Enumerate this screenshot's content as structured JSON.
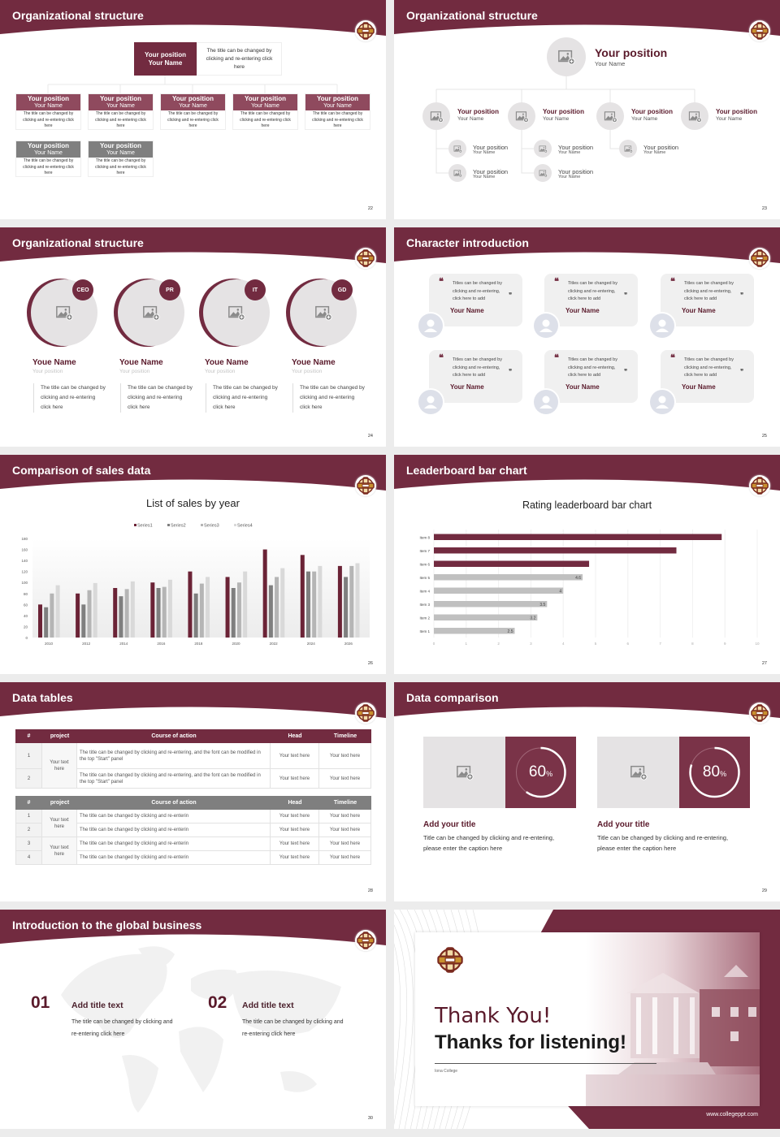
{
  "colors": {
    "brand": "#722b40",
    "brand_light": "#8f4a5e",
    "gray_header": "#7f7f7f",
    "placeholder": "#e5e3e4"
  },
  "slides": {
    "s22": {
      "title": "Organizational structure",
      "page": "22",
      "top": {
        "position": "Your position",
        "name": "Your Name",
        "desc": "The title can be changed by clicking and re-entering click here"
      },
      "cards": [
        {
          "position": "Your position",
          "name": "Your Name",
          "desc": "The title can be changed by clicking and re-entering click here",
          "style": "accent"
        },
        {
          "position": "Your position",
          "name": "Your Name",
          "desc": "The title can be changed by clicking and re-entering click here",
          "style": "accent"
        },
        {
          "position": "Your position",
          "name": "Your Name",
          "desc": "The title can be changed by clicking and re-entering click here",
          "style": "accent"
        },
        {
          "position": "Your position",
          "name": "Your Name",
          "desc": "The title can be changed by clicking and re-entering click here",
          "style": "accent"
        },
        {
          "position": "Your position",
          "name": "Your Name",
          "desc": "The title can be changed by clicking and re-entering click here",
          "style": "accent"
        },
        {
          "position": "Your position",
          "name": "Your Name",
          "desc": "The title can be changed by clicking and re-entering click here",
          "style": "gray"
        },
        {
          "position": "Your position",
          "name": "Your Name",
          "desc": "The title can be changed by clicking and re-entering click here",
          "style": "gray"
        }
      ]
    },
    "s23": {
      "title": "Organizational structure",
      "page": "23",
      "top": {
        "position": "Your position",
        "name": "Your Name"
      },
      "level2": [
        {
          "position": "Your position",
          "name": "Your Name"
        },
        {
          "position": "Your position",
          "name": "Your Name"
        },
        {
          "position": "Your position",
          "name": "Your Name"
        },
        {
          "position": "Your position",
          "name": "Your Name"
        }
      ],
      "level3": [
        {
          "position": "Your position",
          "name": "Your Name"
        },
        {
          "position": "Your position",
          "name": "Your Name"
        },
        {
          "position": "Your position",
          "name": "Your Name"
        },
        {
          "position": "Your position",
          "name": "Your Name"
        },
        {
          "position": "Your position",
          "name": "Your Name"
        }
      ]
    },
    "s24": {
      "title": "Organizational structure",
      "page": "24",
      "members": [
        {
          "badge": "CEO",
          "name": "Youe Name",
          "position": "Your position",
          "desc": "The title can be changed by clicking and re-entering click here"
        },
        {
          "badge": "PR",
          "name": "Youe Name",
          "position": "Your position",
          "desc": "The title can be changed by clicking and re-entering click here"
        },
        {
          "badge": "IT",
          "name": "Youe Name",
          "position": "Your position",
          "desc": "The title can be changed by clicking and re-entering click here"
        },
        {
          "badge": "GD",
          "name": "Youe Name",
          "position": "Your position",
          "desc": "The title can be changed by clicking and re-entering click here"
        }
      ]
    },
    "s25": {
      "title": "Character introduction",
      "page": "25",
      "cards": [
        {
          "quote": "Titles can be changed by clicking and re-entering, click here to add",
          "name": "Your Name"
        },
        {
          "quote": "Titles can be changed by clicking and re-entering, click here to add",
          "name": "Your Name"
        },
        {
          "quote": "Titles can be changed by clicking and re-entering, click here to add",
          "name": "Your Name"
        },
        {
          "quote": "Titles can be changed by clicking and re-entering, click here to add",
          "name": "Your Name"
        },
        {
          "quote": "Titles can be changed by clicking and re-entering, click here to add",
          "name": "Your Name"
        },
        {
          "quote": "Titles can be changed by clicking and re-entering, click here to add",
          "name": "Your Name"
        }
      ]
    },
    "s26": {
      "title": "Comparison of sales data",
      "page": "26"
    },
    "s27": {
      "title": "Leaderboard bar chart",
      "page": "27"
    },
    "s28": {
      "title": "Data tables",
      "page": "28",
      "table1": {
        "headers": [
          "#",
          "project",
          "Course of action",
          "Head",
          "Timeline"
        ],
        "project": "Your text here",
        "rows": [
          {
            "num": "1",
            "action": "The title can be changed by clicking and re-entering, and the font can be modified in the top \"Start\" panel",
            "head": "Your text here",
            "timeline": "Your text here"
          },
          {
            "num": "2",
            "action": "The title can be changed by clicking and re-entering, and the font can be modified in the top \"Start\" panel",
            "head": "Your text here",
            "timeline": "Your text here"
          }
        ]
      },
      "table2": {
        "headers": [
          "#",
          "project",
          "Course of action",
          "Head",
          "Timeline"
        ],
        "projects": [
          "Your text here",
          "Your text here"
        ],
        "rows": [
          {
            "num": "1",
            "action": "The title can be changed by clicking and re-enterin",
            "head": "Your text here",
            "timeline": "Your text here"
          },
          {
            "num": "2",
            "action": "The title can be changed by clicking and re-enterin",
            "head": "Your text here",
            "timeline": "Your text here"
          },
          {
            "num": "3",
            "action": "The title can be changed by clicking and re-enterin",
            "head": "Your text here",
            "timeline": "Your text here"
          },
          {
            "num": "4",
            "action": "The title can be changed by clicking and re-enterin",
            "head": "Your text here",
            "timeline": "Your text here"
          }
        ]
      }
    },
    "s29": {
      "title": "Data comparison",
      "page": "29",
      "items": [
        {
          "percent": 60,
          "value": "60",
          "unit": "%",
          "title": "Add your title",
          "desc": "Title can be changed by clicking and re-entering, please enter the caption here"
        },
        {
          "percent": 80,
          "value": "80",
          "unit": "%",
          "title": "Add your title",
          "desc": "Title can be changed by clicking and re-entering, please enter the caption here"
        }
      ]
    },
    "s30": {
      "title": "Introduction to the global business",
      "page": "30",
      "items": [
        {
          "num": "01",
          "title": "Add title text",
          "desc": "The title can be changed by clicking and re-entering click here"
        },
        {
          "num": "02",
          "title": "Add title text",
          "desc": "The title can be changed by clicking and re-entering click here"
        }
      ]
    },
    "s31": {
      "thank_you": "Thank You!",
      "thanks": "Thanks for listening!",
      "college": "Iona College",
      "url": "www.collegeppt.com"
    }
  },
  "chart_data": [
    {
      "type": "bar",
      "title": "List of sales by year",
      "categories": [
        "2010",
        "2012",
        "2014",
        "2016",
        "2018",
        "2020",
        "2022",
        "2024",
        "2026"
      ],
      "series": [
        {
          "name": "Series1",
          "color": "#6b2336",
          "values": [
            60,
            80,
            90,
            100,
            120,
            110,
            160,
            150,
            130
          ]
        },
        {
          "name": "Series2",
          "color": "#7f7f7f",
          "values": [
            55,
            60,
            75,
            90,
            80,
            90,
            95,
            120,
            110
          ]
        },
        {
          "name": "Series3",
          "color": "#b5b5b5",
          "values": [
            80,
            86,
            88,
            92,
            98,
            100,
            110,
            120,
            130
          ]
        },
        {
          "name": "Series4",
          "color": "#d9d9d9",
          "values": [
            95,
            99,
            102,
            105,
            110,
            120,
            126,
            130,
            135
          ]
        }
      ],
      "yticks": [
        "0",
        "20",
        "40",
        "60",
        "80",
        "100",
        "120",
        "140",
        "160",
        "180"
      ],
      "ylim": [
        0,
        180
      ],
      "legend": "top",
      "grid": false
    },
    {
      "type": "bar",
      "orientation": "horizontal",
      "title": "Rating leaderboard bar chart",
      "categories": [
        "Item 1",
        "Item 2",
        "Item 3",
        "Item 4",
        "Item 5",
        "Item 6",
        "Item 7",
        "Item 8"
      ],
      "values": [
        2.5,
        3.2,
        3.5,
        4,
        4.6,
        4.8,
        7.5,
        8.9
      ],
      "data_labels": [
        "2.5",
        "3.2",
        "3.5",
        "4",
        "4.6",
        "",
        "",
        ""
      ],
      "highlight_color": "#722b40",
      "base_color": "#c0c0c0",
      "xticks": [
        "0",
        "1",
        "2",
        "3",
        "4",
        "5",
        "6",
        "7",
        "8",
        "9",
        "10"
      ],
      "xlim": [
        0,
        10
      ],
      "grid": true
    }
  ]
}
